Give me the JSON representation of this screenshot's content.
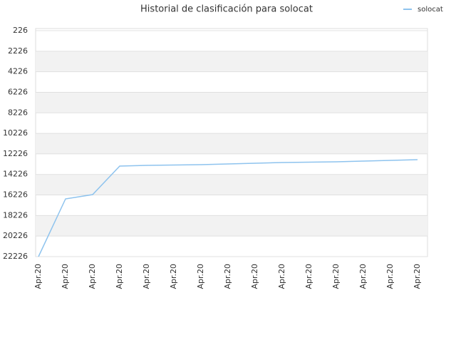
{
  "chart_data": {
    "type": "line",
    "title": "Historial de clasificación para solocat",
    "categories": [
      "Apr.20",
      "Apr.20",
      "Apr.20",
      "Apr.20",
      "Apr.20",
      "Apr.20",
      "Apr.20",
      "Apr.20",
      "Apr.20",
      "Apr.20",
      "Apr.20",
      "Apr.20",
      "Apr.20",
      "Apr.20",
      "Apr.20"
    ],
    "series": [
      {
        "name": "solocat",
        "color": "#8ec3ee",
        "values": [
          22226,
          16604,
          16188,
          13412,
          13343,
          13308,
          13273,
          13204,
          13135,
          13065,
          13030,
          12996,
          12926,
          12857,
          12787
        ]
      }
    ],
    "ylim": [
      226,
      22226
    ],
    "y_inverted": true,
    "yticks": [
      226,
      2226,
      4226,
      6226,
      8226,
      10226,
      12226,
      14226,
      16226,
      18226,
      20226,
      22226
    ],
    "grid": true,
    "legend": "top-right"
  }
}
